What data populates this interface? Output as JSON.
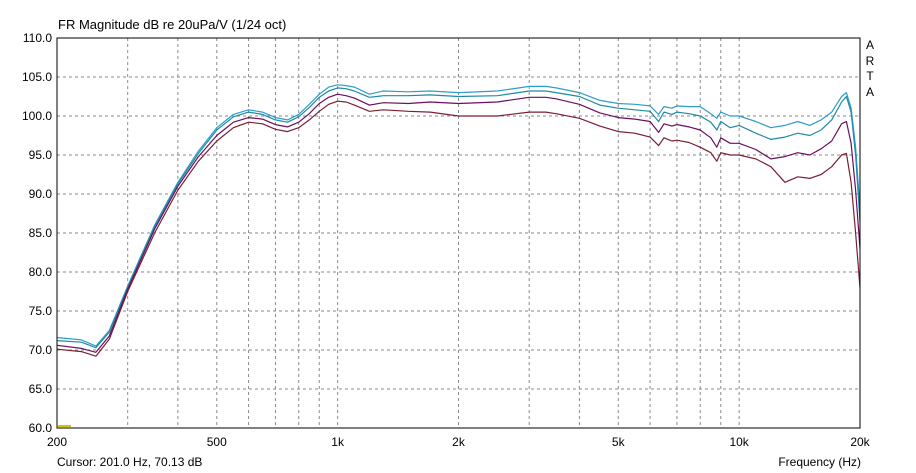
{
  "header": {
    "title": "FR Magnitude dB re 20uPa/V (1/24 oct)",
    "brand_letters": [
      "A",
      "R",
      "T",
      "A"
    ]
  },
  "footer": {
    "cursor": "Cursor: 201.0 Hz, 70.13 dB",
    "x_axis_label": "Frequency (Hz)"
  },
  "chart_data": {
    "type": "line",
    "title": "FR Magnitude dB re 20uPa/V (1/24 oct)",
    "xlabel": "Frequency (Hz)",
    "ylabel": "",
    "xscale": "log",
    "xlim": [
      200,
      20000
    ],
    "ylim": [
      60,
      110
    ],
    "grid": true,
    "x_ticks": [
      {
        "value": 200,
        "label": "200"
      },
      {
        "value": 500,
        "label": "500"
      },
      {
        "value": 1000,
        "label": "1k"
      },
      {
        "value": 2000,
        "label": "2k"
      },
      {
        "value": 5000,
        "label": "5k"
      },
      {
        "value": 10000,
        "label": "10k"
      },
      {
        "value": 20000,
        "label": "20k"
      }
    ],
    "y_ticks": [
      "60.0",
      "65.0",
      "70.0",
      "75.0",
      "80.0",
      "85.0",
      "90.0",
      "95.0",
      "100.0",
      "105.0",
      "110.0"
    ],
    "cursor_marker": {
      "x": 201.0,
      "y": 70.13,
      "color": "#d4c400"
    },
    "series": [
      {
        "color": "#2e9ec9",
        "x": [
          200,
          230,
          250,
          270,
          300,
          350,
          400,
          450,
          500,
          550,
          600,
          650,
          700,
          750,
          800,
          850,
          900,
          950,
          1000,
          1050,
          1100,
          1200,
          1300,
          1500,
          1700,
          2000,
          2500,
          3000,
          3300,
          3500,
          4000,
          4500,
          5000,
          5500,
          6000,
          6300,
          6500,
          6800,
          7000,
          7500,
          8000,
          8500,
          8800,
          9000,
          9500,
          10000,
          11000,
          12000,
          13000,
          14000,
          15000,
          16000,
          17000,
          18000,
          18500,
          19000,
          19500,
          20000
        ],
        "y": [
          71.6,
          71.3,
          70.5,
          72.5,
          78.2,
          86.0,
          91.5,
          95.5,
          98.5,
          100.2,
          100.8,
          100.5,
          99.8,
          99.5,
          100.2,
          101.5,
          102.8,
          103.7,
          104.0,
          103.9,
          103.7,
          102.8,
          103.2,
          103.1,
          103.2,
          103.0,
          103.2,
          103.8,
          103.8,
          103.6,
          103.0,
          102.0,
          101.6,
          101.5,
          101.3,
          100.2,
          101.2,
          101.0,
          101.3,
          101.2,
          101.2,
          100.3,
          99.7,
          100.5,
          100.0,
          100.0,
          99.3,
          98.5,
          98.8,
          99.3,
          98.8,
          99.5,
          100.5,
          102.5,
          103.0,
          101.0,
          96.0,
          88.0
        ]
      },
      {
        "color": "#1e8aa4",
        "x": [
          200,
          230,
          250,
          270,
          300,
          350,
          400,
          450,
          500,
          550,
          600,
          650,
          700,
          750,
          800,
          850,
          900,
          950,
          1000,
          1050,
          1100,
          1200,
          1300,
          1500,
          1700,
          2000,
          2500,
          3000,
          3300,
          3500,
          4000,
          4500,
          5000,
          5500,
          6000,
          6300,
          6500,
          6800,
          7000,
          7500,
          8000,
          8500,
          8800,
          9000,
          9500,
          10000,
          11000,
          12000,
          13000,
          14000,
          15000,
          16000,
          17000,
          18000,
          18500,
          19000,
          19500,
          20000
        ],
        "y": [
          71.2,
          71.0,
          70.3,
          72.3,
          78.0,
          85.8,
          91.3,
          95.2,
          98.2,
          99.9,
          100.5,
          100.2,
          99.5,
          99.2,
          99.9,
          101.1,
          102.4,
          103.2,
          103.6,
          103.5,
          103.2,
          102.4,
          102.6,
          102.6,
          102.7,
          102.5,
          102.6,
          103.2,
          103.2,
          103.0,
          102.5,
          101.4,
          101.0,
          100.8,
          100.6,
          99.3,
          100.5,
          100.2,
          100.5,
          100.3,
          100.0,
          99.2,
          98.2,
          99.3,
          98.5,
          98.8,
          97.8,
          97.0,
          97.3,
          97.8,
          97.5,
          98.2,
          99.5,
          101.8,
          102.5,
          100.5,
          95.0,
          86.5
        ]
      },
      {
        "color": "#6a0f5f",
        "x": [
          200,
          230,
          250,
          270,
          300,
          350,
          400,
          450,
          500,
          550,
          600,
          650,
          700,
          750,
          800,
          850,
          900,
          950,
          1000,
          1050,
          1100,
          1200,
          1300,
          1500,
          1700,
          2000,
          2500,
          3000,
          3300,
          3500,
          4000,
          4500,
          5000,
          5500,
          6000,
          6300,
          6500,
          6800,
          7000,
          7500,
          8000,
          8500,
          8800,
          9000,
          9500,
          10000,
          11000,
          12000,
          13000,
          14000,
          15000,
          16000,
          17000,
          18000,
          18500,
          19000,
          19500,
          20000
        ],
        "y": [
          70.6,
          70.2,
          69.7,
          71.8,
          77.8,
          85.5,
          91.0,
          94.8,
          97.5,
          99.2,
          99.8,
          99.6,
          98.9,
          98.6,
          99.2,
          100.3,
          101.6,
          102.4,
          102.8,
          102.6,
          102.3,
          101.4,
          101.7,
          101.6,
          101.8,
          101.6,
          101.8,
          102.4,
          102.4,
          102.2,
          101.5,
          100.4,
          99.8,
          99.6,
          99.3,
          97.9,
          99.0,
          98.7,
          98.9,
          98.6,
          98.2,
          97.2,
          96.0,
          97.2,
          96.5,
          96.5,
          95.7,
          94.5,
          94.8,
          95.3,
          95.0,
          95.8,
          96.8,
          99.0,
          99.3,
          96.5,
          90.5,
          83.0
        ]
      },
      {
        "color": "#7a1f32",
        "x": [
          200,
          230,
          250,
          270,
          300,
          350,
          400,
          450,
          500,
          550,
          600,
          650,
          700,
          750,
          800,
          850,
          900,
          950,
          1000,
          1050,
          1100,
          1200,
          1300,
          1500,
          1700,
          2000,
          2500,
          3000,
          3300,
          3500,
          4000,
          4500,
          5000,
          5500,
          6000,
          6300,
          6500,
          6800,
          7000,
          7500,
          8000,
          8500,
          8800,
          9000,
          9500,
          10000,
          11000,
          12000,
          13000,
          14000,
          15000,
          16000,
          17000,
          18000,
          18500,
          19000,
          19500,
          20000
        ],
        "y": [
          70.1,
          69.8,
          69.2,
          71.4,
          77.5,
          85.0,
          90.5,
          94.2,
          96.8,
          98.5,
          99.2,
          99.0,
          98.3,
          98.0,
          98.5,
          99.5,
          100.6,
          101.5,
          101.9,
          101.8,
          101.4,
          100.6,
          100.8,
          100.6,
          100.5,
          100.0,
          100.0,
          100.5,
          100.5,
          100.3,
          99.7,
          98.7,
          98.0,
          97.8,
          97.3,
          96.2,
          97.2,
          96.8,
          96.9,
          96.6,
          96.0,
          95.3,
          94.2,
          95.3,
          95.0,
          95.0,
          94.5,
          93.5,
          91.5,
          92.2,
          92.0,
          92.5,
          93.5,
          95.0,
          95.2,
          91.5,
          85.0,
          78.0
        ]
      }
    ]
  }
}
